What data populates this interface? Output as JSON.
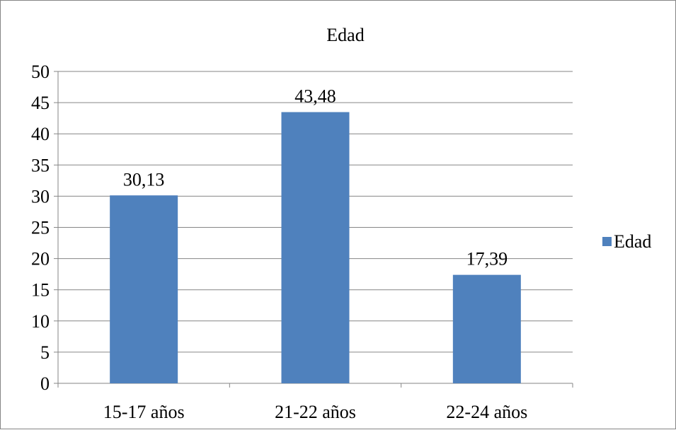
{
  "chart_data": {
    "type": "bar",
    "title": "Edad",
    "categories": [
      "15-17 años",
      "21-22 años",
      "22-24 años"
    ],
    "series": [
      {
        "name": "Edad",
        "values": [
          30.13,
          43.48,
          17.39
        ],
        "color": "#4f81bd"
      }
    ],
    "data_labels": [
      "30,13",
      "43,48",
      "17,39"
    ],
    "ylim": [
      0,
      50
    ],
    "yticks": [
      0,
      5,
      10,
      15,
      20,
      25,
      30,
      35,
      40,
      45,
      50
    ],
    "grid": true,
    "legend": "right",
    "xlabel": "",
    "ylabel": ""
  }
}
